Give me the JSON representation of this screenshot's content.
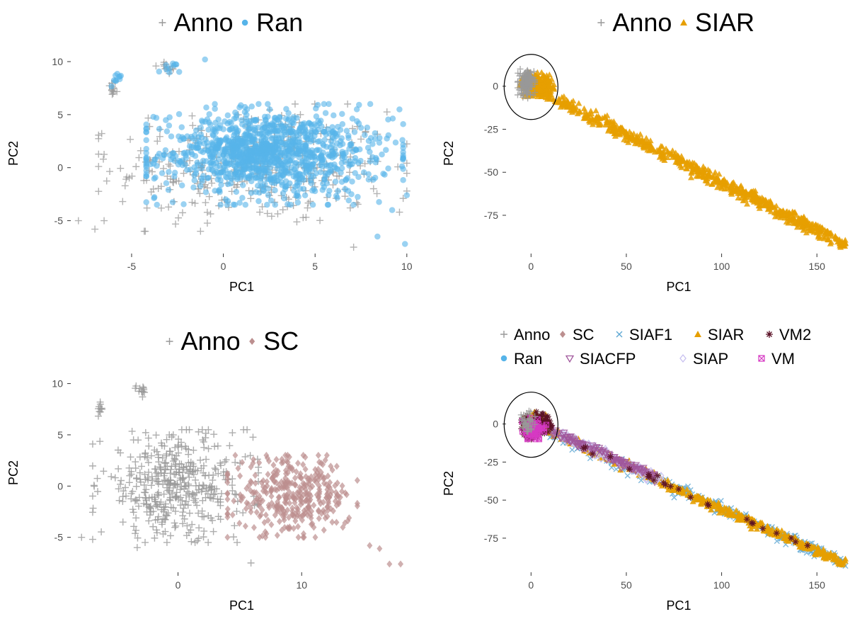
{
  "colors": {
    "anno": "#999999",
    "ran": "#56B4E9",
    "sc": "#BC8F8F",
    "siar": "#E69F00",
    "siaf1": "#5FA8D3",
    "siacfp": "#A0579C",
    "siap": "#C8C0F0",
    "vm": "#D63AC3",
    "vm2": "#5A1126",
    "tick": "#4d4d4d"
  },
  "chart_data": [
    {
      "type": "scatter",
      "legend": [
        {
          "label": "Anno",
          "shape": "plus",
          "color": "#999999"
        },
        {
          "label": "Ran",
          "shape": "circle",
          "color": "#56B4E9"
        }
      ],
      "legend_placement": "top",
      "xlabel": "PC1",
      "ylabel": "PC2",
      "xlim": [
        -8.2,
        10.2
      ],
      "ylim": [
        -7.9,
        10.6
      ],
      "x_ticks": [
        -5,
        0,
        5,
        10
      ],
      "y_ticks": [
        -5,
        0,
        5,
        10
      ],
      "grid": false,
      "series": [
        {
          "name": "Anno",
          "shape": "plus",
          "color": "#999999",
          "opacity": 0.75,
          "clusters": [
            {
              "x": [
                -6.3,
                -5.8
              ],
              "y": [
                6.5,
                8.5
              ],
              "n": 14
            },
            {
              "x": [
                -3.8,
                -2.3
              ],
              "y": [
                8.7,
                10.2
              ],
              "n": 14
            },
            {
              "x": [
                -6.8,
                10.0
              ],
              "y": [
                -6.0,
                6.0
              ],
              "n": 330
            }
          ],
          "points": [
            [
              -7.9,
              -5.0
            ],
            [
              -6.5,
              -5.0
            ],
            [
              -7.0,
              -5.8
            ],
            [
              7.1,
              -7.5
            ],
            [
              9.8,
              -2.9
            ],
            [
              10.0,
              -2.2
            ],
            [
              9.6,
              -4.2
            ],
            [
              4.2,
              5.0
            ],
            [
              3.9,
              4.8
            ]
          ]
        },
        {
          "name": "Ran",
          "shape": "circle",
          "color": "#56B4E9",
          "opacity": 0.6,
          "clusters": [
            {
              "x": [
                -6.2,
                -5.4
              ],
              "y": [
                7.5,
                9.2
              ],
              "n": 10
            },
            {
              "x": [
                -3.6,
                -2.3
              ],
              "y": [
                8.6,
                10.0
              ],
              "n": 10
            },
            {
              "x": [
                -4.2,
                9.8
              ],
              "y": [
                -3.5,
                6.0
              ],
              "n": 900
            },
            {
              "x": [
                -1.5,
                4.5
              ],
              "y": [
                -1.0,
                4.5
              ],
              "n": 300
            }
          ],
          "points": [
            [
              -1.0,
              10.2
            ],
            [
              8.4,
              -6.5
            ],
            [
              8.3,
              0.5
            ],
            [
              10.0,
              -2.6
            ],
            [
              9.2,
              -4.0
            ],
            [
              9.9,
              -7.2
            ]
          ]
        }
      ]
    },
    {
      "type": "scatter",
      "legend": [
        {
          "label": "Anno",
          "shape": "plus",
          "color": "#999999"
        },
        {
          "label": "SIAR",
          "shape": "triangle",
          "color": "#E69F00"
        }
      ],
      "legend_placement": "top",
      "xlabel": "PC1",
      "ylabel": "PC2",
      "xlim": [
        -12,
        167
      ],
      "ylim": [
        -96,
        18
      ],
      "x_ticks": [
        0,
        50,
        100,
        150
      ],
      "y_ticks": [
        0,
        -25,
        -50,
        -75
      ],
      "grid": false,
      "annotations": [
        {
          "shape": "ellipse",
          "description": "circled cluster near origin"
        }
      ],
      "series": [
        {
          "name": "SIAR",
          "shape": "triangle",
          "color": "#E69F00",
          "opacity": 0.85,
          "line_segments": [
            {
              "from": [
                0,
                0
              ],
              "to": [
                165,
                -92
              ],
              "band": 4,
              "n": 700
            }
          ],
          "clusters": [
            {
              "x": [
                -6,
                12
              ],
              "y": [
                -6,
                8
              ],
              "n": 250
            }
          ]
        },
        {
          "name": "Anno",
          "shape": "plus",
          "color": "#999999",
          "opacity": 0.8,
          "clusters": [
            {
              "x": [
                -7,
                2
              ],
              "y": [
                -7,
                10
              ],
              "n": 140
            }
          ]
        }
      ]
    },
    {
      "type": "scatter",
      "legend": [
        {
          "label": "Anno",
          "shape": "plus",
          "color": "#999999"
        },
        {
          "label": "SC",
          "shape": "diamond",
          "color": "#BC8F8F"
        }
      ],
      "legend_placement": "top",
      "xlabel": "PC1",
      "ylabel": "PC2",
      "xlim": [
        -8.5,
        18.8
      ],
      "ylim": [
        -8.2,
        10.8
      ],
      "x_ticks": [
        0,
        10
      ],
      "y_ticks": [
        -5,
        0,
        5,
        10
      ],
      "grid": false,
      "series": [
        {
          "name": "Anno",
          "shape": "plus",
          "color": "#999999",
          "opacity": 0.8,
          "clusters": [
            {
              "x": [
                -6.6,
                -6.1
              ],
              "y": [
                6.5,
                8.3
              ],
              "n": 10
            },
            {
              "x": [
                -3.8,
                -2.0
              ],
              "y": [
                8.7,
                10.2
              ],
              "n": 12
            },
            {
              "x": [
                -6.9,
                6.5
              ],
              "y": [
                -5.5,
                5.5
              ],
              "n": 420
            }
          ],
          "points": [
            [
              -7.8,
              -5.0
            ],
            [
              -6.9,
              -5.2
            ],
            [
              -3.3,
              -6.0
            ],
            [
              5.9,
              -7.5
            ],
            [
              4.4,
              5.2
            ],
            [
              -3.6,
              4.5
            ]
          ]
        },
        {
          "name": "SC",
          "shape": "diamond",
          "color": "#BC8F8F",
          "opacity": 0.7,
          "clusters": [
            {
              "x": [
                4.0,
                14.5
              ],
              "y": [
                -5.0,
                3.0
              ],
              "n": 360
            }
          ],
          "points": [
            [
              15.5,
              -5.8
            ],
            [
              16.3,
              -6.1
            ],
            [
              18.0,
              -7.6
            ],
            [
              17.1,
              -7.6
            ],
            [
              11.8,
              -4.3
            ],
            [
              13.5,
              -3.6
            ]
          ]
        }
      ]
    },
    {
      "type": "scatter",
      "legend": [
        {
          "label": "Anno",
          "shape": "plus",
          "color": "#999999"
        },
        {
          "label": "SC",
          "shape": "diamond",
          "color": "#BC8F8F"
        },
        {
          "label": "SIAF1",
          "shape": "cross",
          "color": "#5FA8D3"
        },
        {
          "label": "SIAR",
          "shape": "triangle",
          "color": "#E69F00"
        },
        {
          "label": "VM2",
          "shape": "star",
          "color": "#5A1126"
        },
        {
          "label": "Ran",
          "shape": "circle",
          "color": "#56B4E9"
        },
        {
          "label": "SIACFP",
          "shape": "triangle-down-open",
          "color": "#A0579C"
        },
        {
          "label": "SIAP",
          "shape": "diamond-open",
          "color": "#C8C0F0"
        },
        {
          "label": "VM",
          "shape": "square-cross",
          "color": "#D63AC3"
        }
      ],
      "legend_placement": "top",
      "xlabel": "PC1",
      "ylabel": "PC2",
      "xlim": [
        -12,
        167
      ],
      "ylim": [
        -96,
        18
      ],
      "x_ticks": [
        0,
        50,
        100,
        150
      ],
      "y_ticks": [
        0,
        -25,
        -50,
        -75
      ],
      "grid": false,
      "annotations": [
        {
          "shape": "ellipse",
          "description": "circled cluster near origin"
        }
      ],
      "series": [
        {
          "name": "SIAF1",
          "shape": "cross",
          "color": "#5FA8D3",
          "opacity": 0.8,
          "line_segments": [
            {
              "from": [
                5,
                -3
              ],
              "to": [
                165,
                -92
              ],
              "band": 4,
              "n": 300
            }
          ]
        },
        {
          "name": "SIAR",
          "shape": "triangle",
          "color": "#E69F00",
          "opacity": 0.9,
          "line_segments": [
            {
              "from": [
                8,
                -4
              ],
              "to": [
                165,
                -92
              ],
              "band": 3,
              "n": 450
            }
          ],
          "clusters": [
            {
              "x": [
                -4,
                8
              ],
              "y": [
                -5,
                8
              ],
              "n": 80
            }
          ]
        },
        {
          "name": "SIAP",
          "shape": "diamond-open",
          "color": "#C8C0F0",
          "opacity": 0.9,
          "line_segments": [
            {
              "from": [
                12,
                -5
              ],
              "to": [
                70,
                -38
              ],
              "band": 3,
              "n": 120
            }
          ]
        },
        {
          "name": "SIACFP",
          "shape": "triangle-down-open",
          "color": "#A0579C",
          "opacity": 0.8,
          "line_segments": [
            {
              "from": [
                10,
                -4
              ],
              "to": [
                65,
                -35
              ],
              "band": 3,
              "n": 140
            }
          ]
        },
        {
          "name": "VM2",
          "shape": "star",
          "color": "#5A1126",
          "opacity": 0.9,
          "clusters": [
            {
              "x": [
                -5,
                12
              ],
              "y": [
                -10,
                8
              ],
              "n": 110
            }
          ],
          "line_segments": [
            {
              "from": [
                15,
                -8
              ],
              "to": [
                160,
                -90
              ],
              "band": 2,
              "n": 25
            }
          ]
        },
        {
          "name": "VM",
          "shape": "square-cross",
          "color": "#D63AC3",
          "opacity": 0.85,
          "clusters": [
            {
              "x": [
                -5,
                8
              ],
              "y": [
                -10,
                4
              ],
              "n": 60
            }
          ]
        },
        {
          "name": "Anno",
          "shape": "plus",
          "color": "#999999",
          "opacity": 0.8,
          "clusters": [
            {
              "x": [
                -6,
                2
              ],
              "y": [
                -7,
                10
              ],
              "n": 40
            }
          ]
        }
      ]
    }
  ]
}
